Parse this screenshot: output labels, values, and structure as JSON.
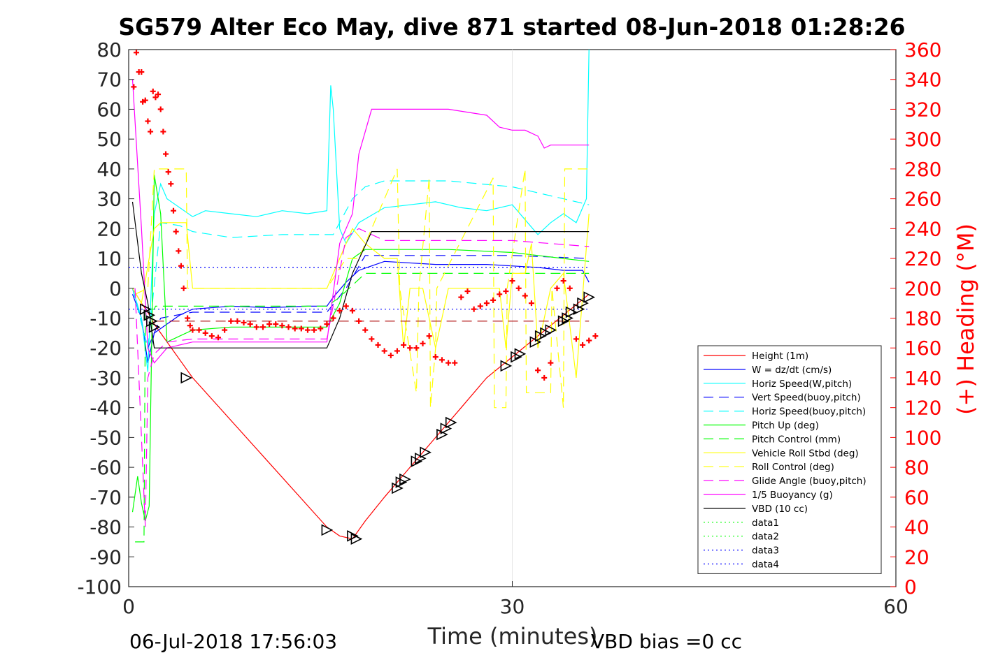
{
  "chart_data": {
    "type": "line",
    "title": "SG579 Alter Eco May, dive 871 started 08-Jun-2018 01:28:26",
    "xlabel": "Time (minutes)",
    "ylabel_right": "(+) Heading (°M)",
    "footer_left": "06-Jul-2018 17:56:03",
    "footer_right": "VBD bias =0 cc",
    "xlim": [
      0,
      60
    ],
    "ylim": [
      -100,
      80
    ],
    "ylim_right": [
      0,
      360
    ],
    "xticks": [
      0,
      30,
      60
    ],
    "yticks": [
      80,
      70,
      60,
      50,
      40,
      30,
      20,
      10,
      0,
      -10,
      -20,
      -30,
      -40,
      -50,
      -60,
      -70,
      -80,
      -90,
      -100
    ],
    "yticks_right": [
      360,
      340,
      320,
      300,
      280,
      260,
      240,
      220,
      200,
      180,
      160,
      140,
      120,
      100,
      80,
      60,
      40,
      20,
      0
    ],
    "grid": "x",
    "colors": {
      "red": "#ff0000",
      "blue": "#0000ff",
      "cyan": "#00ffff",
      "green": "#00ff00",
      "yellow": "#ffff00",
      "magenta": "#ff00ff",
      "black": "#000000"
    },
    "legend": [
      {
        "label": "Height (1m)",
        "color": "#ff0000",
        "style": "solid"
      },
      {
        "label": "W = dz/dt (cm/s)",
        "color": "#0000ff",
        "style": "solid"
      },
      {
        "label": "Horiz Speed(W,pitch)",
        "color": "#00ffff",
        "style": "solid"
      },
      {
        "label": "Vert Speed(buoy,pitch)",
        "color": "#0000ff",
        "style": "dashed"
      },
      {
        "label": "Horiz Speed(buoy,pitch)",
        "color": "#00ffff",
        "style": "dashed"
      },
      {
        "label": "Pitch Up (deg)",
        "color": "#00ff00",
        "style": "solid"
      },
      {
        "label": "Pitch Control (mm)",
        "color": "#00ff00",
        "style": "dashed"
      },
      {
        "label": "Vehicle Roll Stbd (deg)",
        "color": "#ffff00",
        "style": "solid"
      },
      {
        "label": "Roll Control (deg)",
        "color": "#ffff00",
        "style": "dashed"
      },
      {
        "label": "Glide Angle (buoy,pitch)",
        "color": "#ff00ff",
        "style": "dashed"
      },
      {
        "label": "1/5 Buoyancy (g)",
        "color": "#ff00ff",
        "style": "solid"
      },
      {
        "label": "VBD (10 cc)",
        "color": "#000000",
        "style": "solid"
      },
      {
        "label": "data1",
        "color": "#00ff00",
        "style": "dotted"
      },
      {
        "label": "data2",
        "color": "#00ff00",
        "style": "dotted"
      },
      {
        "label": "data3",
        "color": "#0000ff",
        "style": "dotted"
      },
      {
        "label": "data4",
        "color": "#0000ff",
        "style": "dotted"
      }
    ],
    "series": [
      {
        "name": "Height (1m)",
        "color": "#ff0000",
        "style": "solid",
        "x": [
          0.3,
          1.0,
          1.5,
          2.0,
          5.0,
          15.5,
          16.5,
          17.5,
          18.5,
          20.0,
          22.0,
          24.0,
          26.0,
          28.0,
          30.0,
          32.0,
          34.0,
          36.0
        ],
        "y": [
          0,
          -5,
          -8,
          -12,
          -30,
          -80,
          -83,
          -84,
          -78,
          -70,
          -60,
          -50,
          -40,
          -30,
          -23,
          -16,
          -9,
          -2
        ]
      },
      {
        "name": "W = dz/dt (cm/s)",
        "color": "#0000ff",
        "style": "solid",
        "x": [
          0.3,
          1.0,
          1.5,
          2.0,
          3.0,
          4.0,
          5.0,
          8.0,
          11.0,
          14.0,
          15.5,
          16.0,
          17.0,
          18.0,
          20.0,
          24.0,
          28.0,
          32.0,
          34.0,
          35.5,
          36.0
        ],
        "y": [
          -2,
          -10,
          -25,
          -15,
          -12,
          -9,
          -7,
          -6,
          -6.5,
          -6,
          -6,
          -3,
          2,
          6,
          9,
          8,
          8,
          7,
          6,
          6,
          2
        ]
      },
      {
        "name": "Horiz Speed(W,pitch)",
        "color": "#00ffff",
        "style": "solid",
        "x": [
          0.3,
          1.0,
          1.5,
          2.0,
          2.5,
          3.0,
          4.0,
          5.0,
          6.0,
          8.0,
          10.0,
          12.0,
          14.0,
          15.5,
          15.8,
          16.0,
          16.5,
          17.0,
          18.0,
          20.0,
          22.0,
          24.0,
          26.0,
          28.0,
          30.0,
          32.0,
          33.0,
          34.0,
          35.0,
          35.8,
          36.0
        ],
        "y": [
          0,
          -10,
          -28,
          25,
          35,
          30,
          27,
          24,
          26,
          25,
          24,
          26,
          25,
          26,
          68,
          60,
          20,
          15,
          22,
          27,
          28,
          29,
          27,
          26,
          28,
          18,
          22,
          25,
          22,
          30,
          80
        ]
      },
      {
        "name": "Vert Speed(buoy,pitch)",
        "color": "#0000ff",
        "style": "dashed",
        "x": [
          0.3,
          1.5,
          2.5,
          5.0,
          10.0,
          15.5,
          17.0,
          18.5,
          25.0,
          30.0,
          36.0
        ],
        "y": [
          0,
          -20,
          -10,
          -8,
          -8,
          -8,
          0,
          11,
          11,
          11,
          10
        ]
      },
      {
        "name": "Horiz Speed(buoy,pitch)",
        "color": "#00ffff",
        "style": "dashed",
        "x": [
          0.3,
          1.5,
          2.5,
          4.0,
          5.0,
          8.0,
          12.0,
          15.5,
          16.0,
          17.5,
          18.5,
          20.0,
          25.0,
          30.0,
          32.0,
          34.0,
          36.0
        ],
        "y": [
          0,
          -20,
          22,
          21,
          19,
          17,
          18,
          18,
          18,
          30,
          34,
          36,
          36,
          34,
          32,
          30,
          28
        ]
      },
      {
        "name": "Pitch Up (deg)",
        "color": "#00ff00",
        "style": "solid",
        "x": [
          0.3,
          0.7,
          1.0,
          1.3,
          1.6,
          2.0,
          2.5,
          3.0,
          4.0,
          5.0,
          8.0,
          12.0,
          15.5,
          16.5,
          17.5,
          18.5,
          20.0,
          25.0,
          30.0,
          32.0,
          34.0,
          36.0
        ],
        "y": [
          -75,
          -63,
          -72,
          -78,
          -73,
          38,
          25,
          -18,
          -16,
          -14,
          -13,
          -13,
          -13,
          -5,
          10,
          13,
          13,
          13,
          12,
          11,
          10,
          9
        ]
      },
      {
        "name": "Pitch Control (mm)",
        "color": "#00ff00",
        "style": "dashed",
        "x": [
          0.5,
          1.2,
          1.3,
          2.0,
          2.1,
          15.5,
          16.5,
          18.5,
          36.0
        ],
        "y": [
          -85,
          -85,
          -7,
          -7,
          -6,
          -6,
          -3,
          5,
          5
        ]
      },
      {
        "name": "Vehicle Roll Stbd (deg)",
        "color": "#ffff00",
        "style": "solid",
        "x": [
          0.3,
          1.0,
          2.0,
          2.5,
          4.5,
          5.0,
          10.0,
          15.5,
          16.5,
          17.5,
          18.5,
          20.0,
          21.0,
          21.5,
          22.0,
          23.0,
          24.0,
          25.0,
          26.0,
          28.0,
          29.0,
          29.5,
          30.0,
          31.0,
          31.5,
          32.0,
          33.0,
          34.0,
          35.0,
          36.0
        ],
        "y": [
          0,
          -5,
          20,
          22,
          22,
          0,
          0,
          0,
          10,
          20,
          15,
          10,
          10,
          -20,
          0,
          0,
          -20,
          0,
          0,
          0,
          0,
          -20,
          5,
          5,
          15,
          -20,
          0,
          5,
          -30,
          25
        ]
      },
      {
        "name": "Roll Control (deg)",
        "color": "#ffff00",
        "style": "dashed",
        "x": [
          0.5,
          1.5,
          2.0,
          4.5,
          4.6,
          10.0,
          15.5,
          17.0,
          18.0,
          21.0,
          21.2,
          22.5,
          22.7,
          23.5,
          23.6,
          24.0,
          24.1,
          28.5,
          28.6,
          29.5,
          29.6,
          31.0,
          31.1,
          33.0,
          33.1,
          34.0,
          34.1,
          36.0
        ],
        "y": [
          -2,
          0,
          40,
          40,
          0,
          0,
          0,
          10,
          10,
          40,
          0,
          -35,
          0,
          37,
          -40,
          -20,
          0,
          37,
          -40,
          -40,
          0,
          40,
          -35,
          -35,
          0,
          -40,
          40,
          40
        ]
      },
      {
        "name": "Glide Angle (buoy,pitch)",
        "color": "#ff00ff",
        "style": "dashed",
        "x": [
          0.5,
          1.3,
          1.5,
          2.0,
          3.0,
          5.0,
          10.0,
          15.5,
          17.0,
          18.0,
          20.0,
          25.0,
          30.0,
          36.0
        ],
        "y": [
          0,
          -80,
          -30,
          -22,
          -18,
          -17,
          -17,
          -17,
          17,
          20,
          16,
          16,
          16,
          14
        ]
      },
      {
        "name": "1/5 Buoyancy (g)",
        "color": "#ff00ff",
        "style": "solid",
        "x": [
          0.3,
          1.0,
          1.5,
          2.0,
          3.0,
          5.0,
          10.0,
          15.5,
          16.5,
          17.5,
          18.0,
          19.0,
          25.0,
          28.0,
          29.0,
          30.0,
          31.0,
          32.0,
          32.5,
          33.0,
          36.0
        ],
        "y": [
          70,
          20,
          -20,
          -25,
          -20,
          -18,
          -18,
          -18,
          15,
          25,
          45,
          60,
          60,
          58,
          54,
          53,
          53,
          51,
          47,
          48,
          48
        ]
      },
      {
        "name": "VBD (10 cc)",
        "color": "#000000",
        "style": "solid",
        "x": [
          0.3,
          1.0,
          1.5,
          2.0,
          15.5,
          16.5,
          17.5,
          19.0,
          36.0
        ],
        "y": [
          29,
          5,
          -5,
          -20,
          -20,
          -10,
          5,
          19,
          19
        ]
      },
      {
        "name": "data3",
        "color": "#0000ff",
        "style": "dotted",
        "x": [
          0,
          36
        ],
        "y": [
          7,
          7
        ]
      },
      {
        "name": "data4",
        "color": "#0000ff",
        "style": "dotted",
        "x": [
          0,
          36
        ],
        "y": [
          -7,
          -7
        ]
      },
      {
        "name": "ref-dashed-red",
        "color": "#aa0000",
        "style": "dashed",
        "x": [
          2.0,
          36
        ],
        "y": [
          -11,
          -11
        ]
      }
    ],
    "heading_points": {
      "name": "Heading (+)",
      "color": "#ff0000",
      "axis": "right",
      "x": [
        0.4,
        0.6,
        0.8,
        1.0,
        1.1,
        1.3,
        1.5,
        1.7,
        1.9,
        2.1,
        2.3,
        2.5,
        2.7,
        2.9,
        3.1,
        3.3,
        3.5,
        3.7,
        3.9,
        4.1,
        4.3,
        4.6,
        4.8,
        5.0,
        5.5,
        6.0,
        6.5,
        7.0,
        7.5,
        8.0,
        8.5,
        9.0,
        9.5,
        10.0,
        10.5,
        11.0,
        11.5,
        12.0,
        12.5,
        13.0,
        13.5,
        14.0,
        14.5,
        15.0,
        15.5,
        16.0,
        16.5,
        17.0,
        17.5,
        18.0,
        18.5,
        19.0,
        19.5,
        20.0,
        20.5,
        21.0,
        21.5,
        22.0,
        22.5,
        23.0,
        23.5,
        24.0,
        24.5,
        25.0,
        25.5,
        26.0,
        26.5,
        27.0,
        27.5,
        28.0,
        28.5,
        29.0,
        29.5,
        30.0,
        30.5,
        31.0,
        31.5,
        32.0,
        32.5,
        33.0,
        33.5,
        34.0,
        34.5,
        35.0,
        35.5,
        36.0,
        36.5
      ],
      "y": [
        335,
        358,
        345,
        345,
        325,
        326,
        312,
        305,
        332,
        328,
        330,
        320,
        305,
        290,
        278,
        270,
        252,
        238,
        225,
        215,
        200,
        180,
        175,
        172,
        172,
        170,
        168,
        167,
        172,
        178,
        178,
        177,
        176,
        174,
        174,
        176,
        176,
        175,
        174,
        173,
        173,
        172,
        172,
        173,
        176,
        180,
        185,
        188,
        185,
        178,
        172,
        166,
        162,
        158,
        155,
        158,
        162,
        160,
        160,
        163,
        168,
        154,
        152,
        150,
        150,
        194,
        198,
        186,
        188,
        190,
        192,
        196,
        198,
        205,
        200,
        195,
        190,
        145,
        140,
        150,
        200,
        205,
        200,
        166,
        162,
        165,
        168
      ]
    },
    "markers": {
      "name": "triangle markers on Height",
      "color": "#000000",
      "x": [
        1.3,
        1.6,
        1.8,
        2.0,
        4.5,
        15.5,
        17.5,
        17.8,
        21.0,
        21.3,
        21.6,
        22.5,
        22.8,
        23.2,
        24.5,
        24.8,
        25.2,
        29.5,
        30.3,
        30.6,
        31.8,
        32.2,
        32.6,
        33.0,
        34.0,
        34.3,
        34.6,
        35.2,
        35.5,
        36.0
      ],
      "y": [
        -7,
        -9,
        -11,
        -13,
        -30,
        -81,
        -83,
        -84,
        -67,
        -65,
        -64,
        -58,
        -57,
        -55,
        -49,
        -47,
        -45,
        -26,
        -23,
        -22,
        -18,
        -16,
        -15,
        -14,
        -11,
        -10,
        -8,
        -7,
        -5,
        -3
      ]
    }
  }
}
